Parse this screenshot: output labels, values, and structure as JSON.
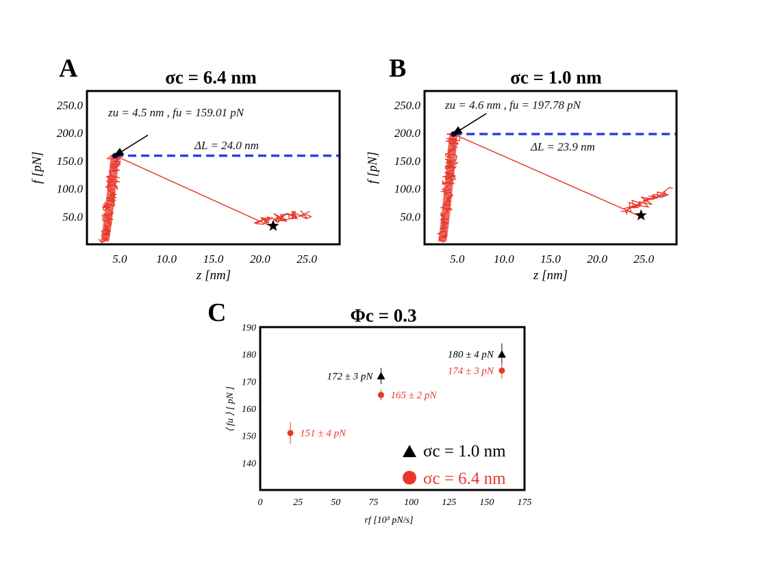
{
  "colors": {
    "red": "#e8382b",
    "blue": "#2a3ee6",
    "black": "#000000"
  },
  "chart_data": [
    {
      "type": "line",
      "panel": "A",
      "title": "σc = 6.4 nm",
      "xlabel": "z [nm]",
      "ylabel": "f [pN]",
      "xlim": [
        1.5,
        28.5
      ],
      "ylim": [
        0,
        275
      ],
      "xticks": [
        "5.0",
        "10.0",
        "15.0",
        "20.0",
        "25.0"
      ],
      "xtick_values": [
        5,
        10,
        15,
        20,
        25
      ],
      "yticks": [
        "50.0",
        "100.0",
        "150.0",
        "200.0",
        "250.0"
      ],
      "ytick_values": [
        50,
        100,
        150,
        200,
        250
      ],
      "unfold_point": {
        "z": 4.5,
        "f": 159.01
      },
      "unfold_label": "zu = 4.5 nm , fu = 159.01 pN",
      "refold_point": {
        "z": 21.4,
        "f": 33
      },
      "noise_tail_end": {
        "z": 24.9,
        "f": 45
      },
      "contour_label": "ΔL = 24.0 nm",
      "dashed_level": 159.01
    },
    {
      "type": "line",
      "panel": "B",
      "title": "σc = 1.0 nm",
      "xlabel": "z [nm]",
      "ylabel": "f [pN]",
      "xlim": [
        1.5,
        28.5
      ],
      "ylim": [
        0,
        275
      ],
      "xticks": [
        "5.0",
        "10.0",
        "15.0",
        "20.0",
        "25.0"
      ],
      "xtick_values": [
        5,
        10,
        15,
        20,
        25
      ],
      "yticks": [
        "50.0",
        "100.0",
        "150.0",
        "200.0",
        "250.0"
      ],
      "ytick_values": [
        50,
        100,
        150,
        200,
        250
      ],
      "unfold_point": {
        "z": 4.6,
        "f": 197.78
      },
      "unfold_label": "zu = 4.6 nm , fu = 197.78 pN",
      "refold_point": {
        "z": 24.7,
        "f": 52
      },
      "noise_tail_end": {
        "z": 27.5,
        "f": 85
      },
      "contour_label": "ΔL = 23.9 nm",
      "dashed_level": 197.78
    },
    {
      "type": "scatter",
      "panel": "C",
      "title": "Φc = 0.3",
      "xlabel": "rf [10³ pN/s]",
      "ylabel": "⟨ fu ⟩ [ pN ]",
      "xlim": [
        0,
        175
      ],
      "ylim": [
        130,
        190
      ],
      "xticks": [
        "0",
        "25",
        "50",
        "75",
        "100",
        "125",
        "150",
        "175"
      ],
      "yticks": [
        "140",
        "150",
        "160",
        "170",
        "180",
        "190"
      ],
      "series": [
        {
          "name": "σc = 1.0 nm",
          "marker": "triangle",
          "points": [
            {
              "x": 80,
              "y": 172,
              "err": 3,
              "label": "172 ± 3 pN"
            },
            {
              "x": 160,
              "y": 180,
              "err": 4,
              "label": "180 ± 4 pN"
            }
          ]
        },
        {
          "name": "σc = 6.4 nm",
          "marker": "circle",
          "points": [
            {
              "x": 20,
              "y": 151,
              "err": 4,
              "label": "151 ± 4 pN"
            },
            {
              "x": 80,
              "y": 165,
              "err": 2,
              "label": "165 ± 2 pN"
            },
            {
              "x": 160,
              "y": 174,
              "err": 3,
              "label": "174 ± 3 pN"
            }
          ]
        }
      ]
    }
  ]
}
